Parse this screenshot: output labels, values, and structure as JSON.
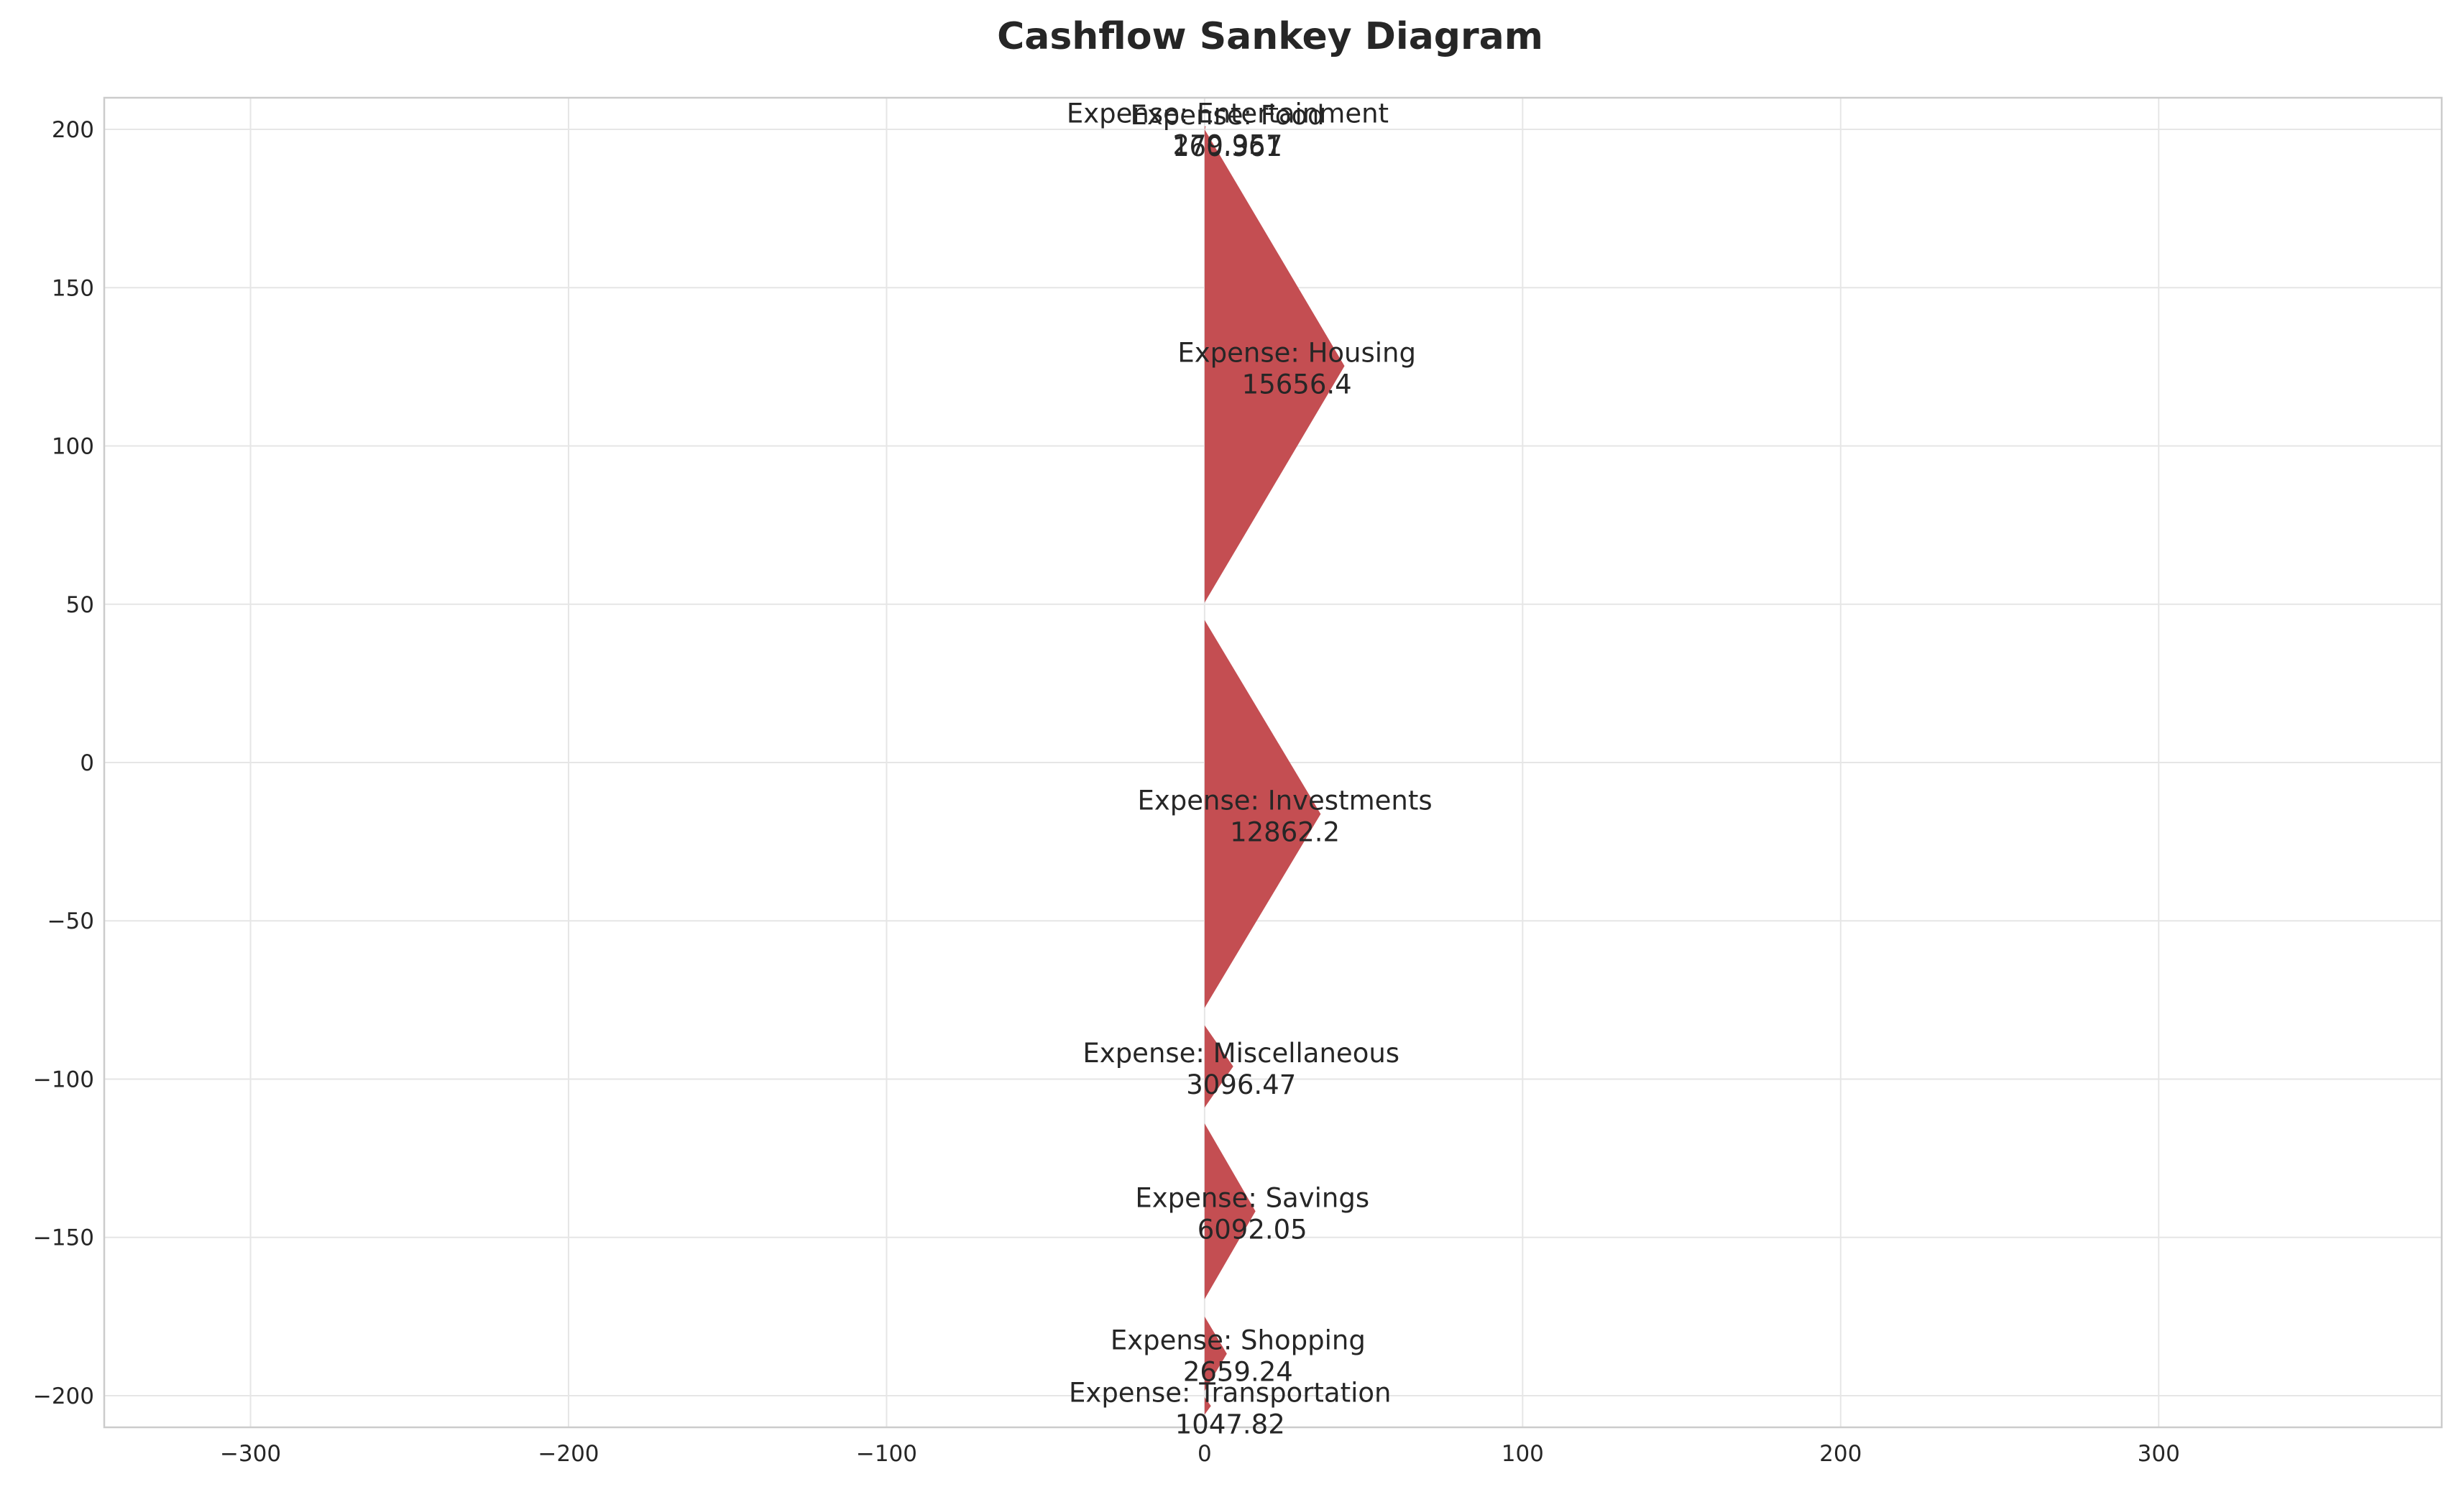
{
  "chart_data": {
    "type": "sankey",
    "title": "Cashflow Sankey Diagram",
    "xlabel": "",
    "ylabel": "",
    "xlim": [
      -346,
      389
    ],
    "ylim": [
      -210,
      210
    ],
    "xticks": [
      -300,
      -200,
      -100,
      0,
      100,
      200,
      300
    ],
    "yticks": [
      200,
      150,
      100,
      50,
      0,
      -50,
      -100,
      -150,
      -200
    ],
    "xtick_labels": [
      "−300",
      "−200",
      "−100",
      "0",
      "100",
      "200",
      "300"
    ],
    "ytick_labels": [
      "200",
      "150",
      "100",
      "50",
      "0",
      "−50",
      "−100",
      "−150",
      "−200"
    ],
    "grid": true,
    "flow_color": "#c44e52",
    "flows": [
      {
        "label": "Expense: Entertainment",
        "value": 279.957,
        "value_text": "279.957",
        "top": 201.0,
        "bottom": 200.5,
        "tip_x": 0.5
      },
      {
        "label": "Expense: Food",
        "value": 160.361,
        "value_text": "160.361",
        "top": 200.5,
        "bottom": 200.0,
        "tip_x": 0.3
      },
      {
        "label": "Expense: Housing",
        "value": 15656.4,
        "value_text": "15656.4",
        "top": 200.0,
        "bottom": 50.5,
        "tip_x": 44.0
      },
      {
        "label": "Expense: Investments",
        "value": 12862.2,
        "value_text": "12862.2",
        "top": 45.0,
        "bottom": -77.5,
        "tip_x": 36.5
      },
      {
        "label": "Expense: Miscellaneous",
        "value": 3096.47,
        "value_text": "3096.47",
        "top": -83.0,
        "bottom": -109.0,
        "tip_x": 9.0
      },
      {
        "label": "Expense: Savings",
        "value": 6092.05,
        "value_text": "6092.05",
        "top": -114.0,
        "bottom": -169.5,
        "tip_x": 16.0
      },
      {
        "label": "Expense: Shopping",
        "value": 2659.24,
        "value_text": "2659.24",
        "top": -175.0,
        "bottom": -198.5,
        "tip_x": 7.0
      },
      {
        "label": "Expense: Transportation",
        "value": 1047.82,
        "value_text": "1047.82",
        "top": -200.5,
        "bottom": -206.0,
        "tip_x": 2.0
      }
    ]
  }
}
